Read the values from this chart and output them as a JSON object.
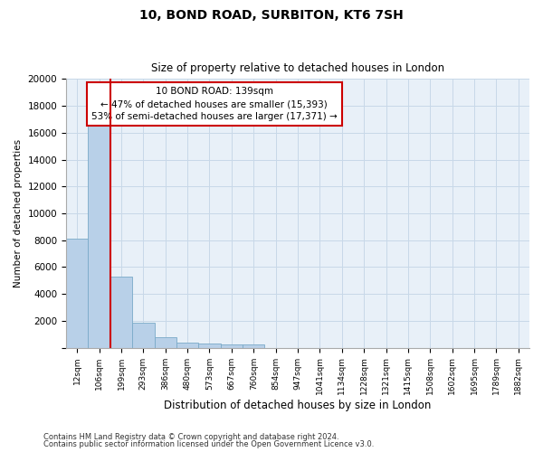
{
  "title1": "10, BOND ROAD, SURBITON, KT6 7SH",
  "title2": "Size of property relative to detached houses in London",
  "xlabel": "Distribution of detached houses by size in London",
  "ylabel": "Number of detached properties",
  "categories": [
    "12sqm",
    "106sqm",
    "199sqm",
    "293sqm",
    "386sqm",
    "480sqm",
    "573sqm",
    "667sqm",
    "760sqm",
    "854sqm",
    "947sqm",
    "1041sqm",
    "1134sqm",
    "1228sqm",
    "1321sqm",
    "1415sqm",
    "1508sqm",
    "1602sqm",
    "1695sqm",
    "1789sqm",
    "1882sqm"
  ],
  "values": [
    8100,
    16600,
    5300,
    1850,
    750,
    380,
    300,
    220,
    210,
    0,
    0,
    0,
    0,
    0,
    0,
    0,
    0,
    0,
    0,
    0,
    0
  ],
  "bar_color": "#b8d0e8",
  "bar_edge_color": "#7aaac8",
  "vline_x": 1.5,
  "vline_color": "#cc0000",
  "annotation_title": "10 BOND ROAD: 139sqm",
  "annotation_line1": "← 47% of detached houses are smaller (15,393)",
  "annotation_line2": "53% of semi-detached houses are larger (17,371) →",
  "annotation_box_color": "#ffffff",
  "annotation_box_edge": "#cc0000",
  "ylim": [
    0,
    20000
  ],
  "yticks": [
    0,
    2000,
    4000,
    6000,
    8000,
    10000,
    12000,
    14000,
    16000,
    18000,
    20000
  ],
  "footnote1": "Contains HM Land Registry data © Crown copyright and database right 2024.",
  "footnote2": "Contains public sector information licensed under the Open Government Licence v3.0.",
  "grid_color": "#c8d8e8",
  "bg_color": "#e8f0f8"
}
